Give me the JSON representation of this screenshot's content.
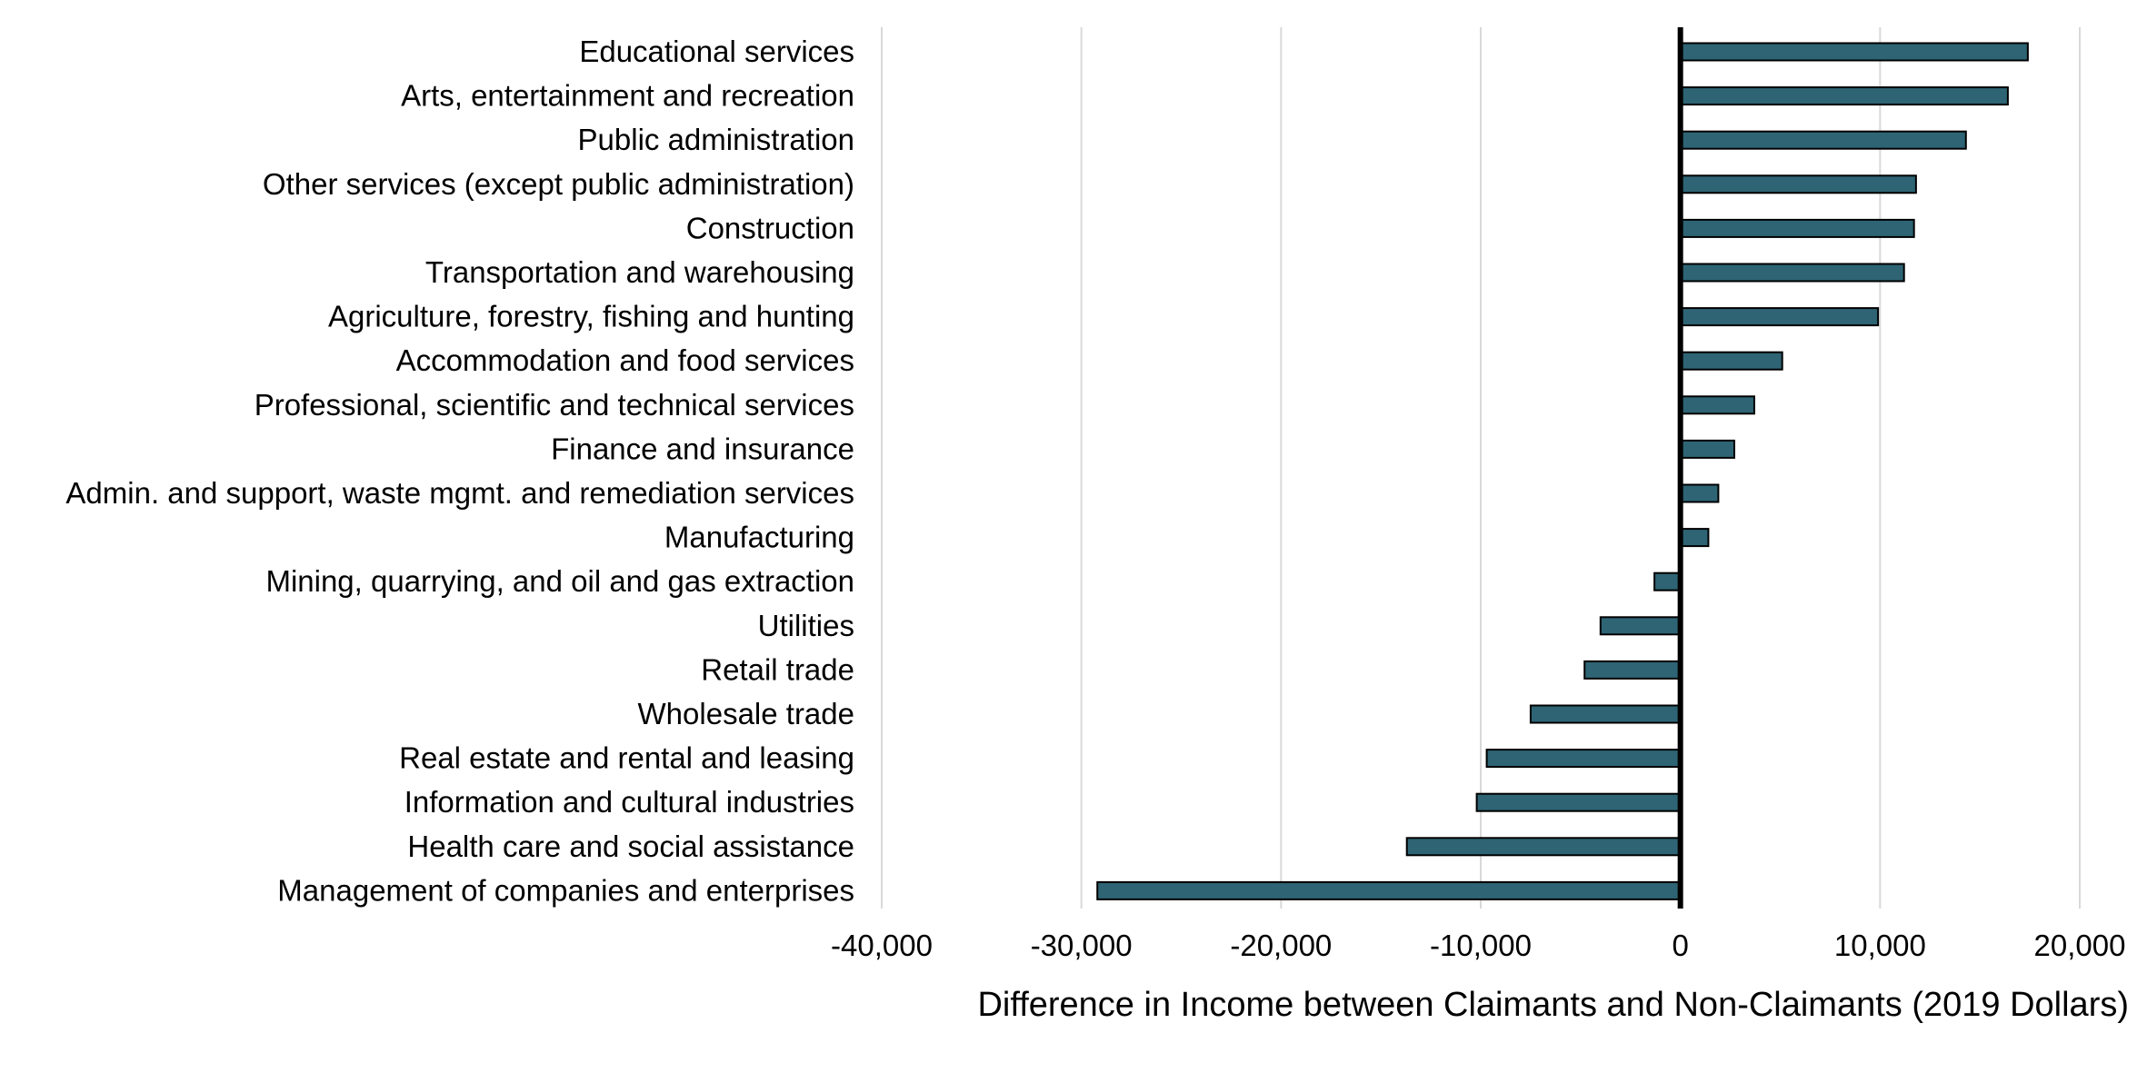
{
  "chart_data": {
    "type": "bar",
    "orientation": "horizontal",
    "categories": [
      "Educational services",
      "Arts, entertainment and recreation",
      "Public administration",
      "Other services (except public administration)",
      "Construction",
      "Transportation and warehousing",
      "Agriculture, forestry, fishing and hunting",
      "Accommodation and food services",
      "Professional, scientific and technical services",
      "Finance and insurance",
      "Admin. and support, waste mgmt. and remediation services",
      "Manufacturing",
      "Mining, quarrying, and oil and gas extraction",
      "Utilities",
      "Retail trade",
      "Wholesale trade",
      "Real estate and rental and leasing",
      "Information and cultural industries",
      "Health care and social assistance",
      "Management of companies and enterprises"
    ],
    "values": [
      17400,
      16400,
      14300,
      11800,
      11700,
      11200,
      9900,
      5100,
      3700,
      2700,
      1900,
      1400,
      -1300,
      -4000,
      -4800,
      -7500,
      -9700,
      -10200,
      -13700,
      -29200
    ],
    "xlabel": "Difference in Income between Claimants and Non-Claimants (2019 Dollars)",
    "xlim": [
      -40000,
      20000
    ],
    "xticks": [
      -40000,
      -30000,
      -20000,
      -10000,
      0,
      10000,
      20000
    ],
    "xtick_labels": [
      "-40,000",
      "-30,000",
      "-20,000",
      "-10,000",
      "0",
      "10,000",
      "20,000"
    ],
    "grid": "vertical",
    "bar_color": "#2e6474",
    "zero_line_color": "#000000"
  }
}
